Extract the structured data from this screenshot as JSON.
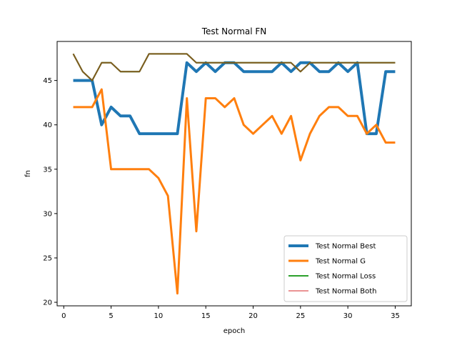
{
  "chart_data": {
    "type": "line",
    "title": "Test Normal FN",
    "xlabel": "epoch",
    "ylabel": "fn",
    "xlim": [
      -0.7,
      36.7
    ],
    "ylim": [
      19.6,
      49.4
    ],
    "xticks": [
      0,
      5,
      10,
      15,
      20,
      25,
      30,
      35
    ],
    "yticks": [
      20,
      25,
      30,
      35,
      40,
      45
    ],
    "legend_position": "lower-right",
    "grid": false,
    "x": [
      1,
      2,
      3,
      4,
      5,
      6,
      7,
      8,
      9,
      10,
      11,
      12,
      13,
      14,
      15,
      16,
      17,
      18,
      19,
      20,
      21,
      22,
      23,
      24,
      25,
      26,
      27,
      28,
      29,
      30,
      31,
      32,
      33,
      34,
      35
    ],
    "series": [
      {
        "name": "Test Normal Best",
        "color": "#1f77b4",
        "width": 4,
        "values": [
          45,
          45,
          45,
          40,
          42,
          41,
          41,
          39,
          39,
          39,
          39,
          39,
          47,
          46,
          47,
          46,
          47,
          47,
          46,
          46,
          46,
          46,
          47,
          46,
          47,
          47,
          46,
          46,
          47,
          46,
          47,
          39,
          39,
          46,
          46
        ]
      },
      {
        "name": "Test Normal G",
        "color": "#ff7f0e",
        "width": 3,
        "values": [
          42,
          42,
          42,
          44,
          35,
          35,
          35,
          35,
          35,
          34,
          32,
          21,
          43,
          28,
          43,
          43,
          42,
          43,
          40,
          39,
          40,
          41,
          39,
          41,
          36,
          39,
          41,
          42,
          42,
          41,
          41,
          39,
          40,
          38,
          38
        ]
      },
      {
        "name": "Test Normal Loss",
        "color": "#2ca02c",
        "width": 2,
        "values": [
          48,
          46,
          45,
          47,
          47,
          46,
          46,
          46,
          48,
          48,
          48,
          48,
          48,
          47,
          47,
          47,
          47,
          47,
          47,
          47,
          47,
          47,
          47,
          47,
          46,
          47,
          47,
          47,
          47,
          47,
          47,
          47,
          47,
          47,
          47
        ]
      },
      {
        "name": "Test Normal Both",
        "color": "#d62728",
        "width": 1,
        "values": [
          48,
          46,
          45,
          47,
          47,
          46,
          46,
          46,
          48,
          48,
          48,
          48,
          48,
          47,
          47,
          47,
          47,
          47,
          47,
          47,
          47,
          47,
          47,
          47,
          46,
          47,
          47,
          47,
          47,
          47,
          47,
          47,
          47,
          47,
          47
        ]
      }
    ],
    "overlap_color": "#7f5a1f"
  }
}
